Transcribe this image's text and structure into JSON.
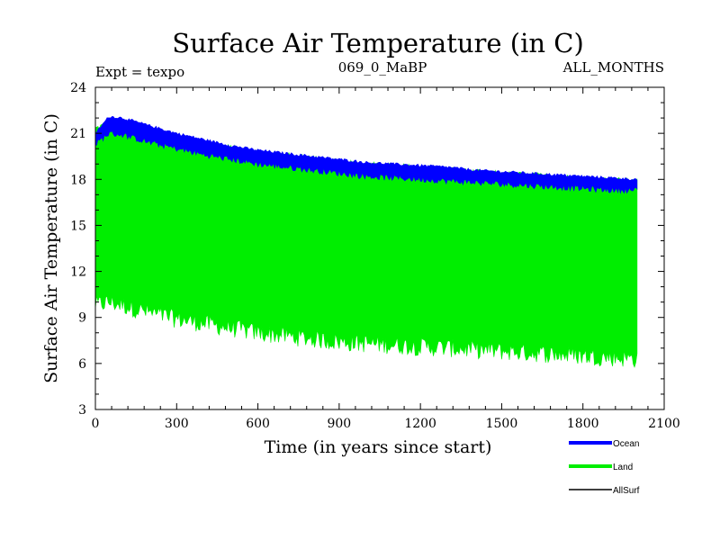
{
  "chart_data": {
    "type": "line",
    "title": "Surface Air Temperature (in C)",
    "subtitle_left": "Expt = texpo",
    "subtitle_center": "069_0_MaBP",
    "subtitle_right": "ALL_MONTHS",
    "xlabel": "Time (in years since start)",
    "ylabel": "Surface Air Temperature (in C)",
    "xlim": [
      0,
      2100
    ],
    "ylim": [
      3,
      24
    ],
    "xticks": [
      0,
      300,
      600,
      900,
      1200,
      1500,
      1800,
      2100
    ],
    "yticks": [
      3,
      6,
      9,
      12,
      15,
      18,
      21,
      24
    ],
    "x_tick_labels": [
      "0",
      "300",
      "600",
      "900",
      "1200",
      "1500",
      "1800",
      "2100"
    ],
    "y_tick_labels": [
      "3",
      "6",
      "9",
      "12",
      "15",
      "18",
      "21",
      "24"
    ],
    "grid": false,
    "legend_position": "bottom-right",
    "series": [
      {
        "name": "Land",
        "color": "#00ee00",
        "style": "band",
        "x": [
          0,
          50,
          100,
          200,
          300,
          400,
          500,
          600,
          700,
          800,
          900,
          1000,
          1100,
          1200,
          1300,
          1400,
          1500,
          1600,
          1700,
          1800,
          1900,
          2000
        ],
        "max": [
          21.3,
          21.6,
          21.5,
          21.0,
          20.6,
          20.3,
          20.0,
          19.7,
          19.5,
          19.3,
          19.1,
          18.9,
          18.8,
          18.7,
          18.6,
          18.4,
          18.3,
          18.2,
          18.1,
          18.0,
          17.9,
          17.8
        ],
        "min": [
          9.8,
          10.0,
          9.8,
          9.3,
          8.9,
          8.6,
          8.3,
          8.0,
          7.8,
          7.6,
          7.4,
          7.3,
          7.2,
          7.1,
          7.0,
          6.9,
          6.8,
          6.7,
          6.6,
          6.5,
          6.4,
          6.3
        ]
      },
      {
        "name": "Ocean",
        "color": "#0000ff",
        "style": "band",
        "x": [
          0,
          50,
          100,
          200,
          300,
          400,
          500,
          600,
          700,
          800,
          900,
          1000,
          1100,
          1200,
          1300,
          1400,
          1500,
          1600,
          1700,
          1800,
          1900,
          2000
        ],
        "max": [
          21.0,
          22.1,
          22.0,
          21.5,
          21.0,
          20.6,
          20.2,
          19.9,
          19.7,
          19.5,
          19.3,
          19.1,
          19.0,
          18.9,
          18.8,
          18.6,
          18.5,
          18.4,
          18.3,
          18.2,
          18.1,
          18.0
        ],
        "min": [
          20.3,
          21.0,
          20.9,
          20.4,
          20.0,
          19.6,
          19.3,
          19.0,
          18.8,
          18.6,
          18.4,
          18.2,
          18.1,
          18.0,
          17.9,
          17.8,
          17.7,
          17.6,
          17.5,
          17.4,
          17.3,
          17.3
        ]
      },
      {
        "name": "AllSurf",
        "color": "#000000",
        "style": "line",
        "x": [],
        "values": []
      }
    ]
  }
}
